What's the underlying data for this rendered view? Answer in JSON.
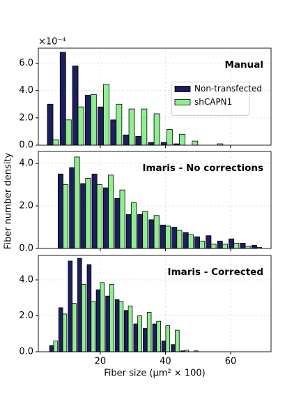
{
  "chart_data": [
    {
      "type": "bar",
      "title": "Manual",
      "y_offset_label": "×10⁻⁴",
      "legend": "center right",
      "grid": true,
      "x": [
        5.5,
        9.4,
        13.2,
        17.1,
        21.0,
        24.9,
        28.8,
        32.6,
        36.5,
        40.4,
        44.3,
        48.2,
        52.0,
        55.9,
        59.8
      ],
      "series": [
        {
          "name": "Non-transfected",
          "color": "#1b1f5e",
          "values": [
            3.0,
            6.8,
            5.8,
            3.65,
            2.8,
            1.85,
            0.75,
            0.65,
            0.2,
            0.2,
            0.1,
            0,
            0,
            0,
            0
          ]
        },
        {
          "name": "shCAPN1",
          "color": "#90ee90",
          "values": [
            0.4,
            1.85,
            2.8,
            3.7,
            4.45,
            3.0,
            2.65,
            2.65,
            2.3,
            1.15,
            0.8,
            0.3,
            0,
            0.1,
            0
          ]
        }
      ],
      "xlim": [
        1,
        72.4
      ],
      "xticks": [
        20,
        40,
        60
      ],
      "ylim": [
        0,
        7.1
      ],
      "yticks": [
        {
          "value": 0,
          "label": "0.0"
        },
        {
          "value": 2,
          "label": "2.0"
        },
        {
          "value": 4,
          "label": "4.0"
        },
        {
          "value": 6,
          "label": "6.0"
        }
      ]
    },
    {
      "type": "bar",
      "title": "Imaris - No corrections",
      "ylabel": "Fiber number density",
      "grid": true,
      "x": [
        8.6,
        12.1,
        15.5,
        19.0,
        22.5,
        26.0,
        29.5,
        33.0,
        36.5,
        40.0,
        43.5,
        47.0,
        50.5,
        54.0,
        57.5,
        61.0,
        64.5,
        68.0
      ],
      "series": [
        {
          "color": "#1b1f5e",
          "values": [
            3.5,
            3.8,
            3.05,
            3.5,
            2.85,
            2.35,
            1.6,
            1.6,
            1.35,
            1.1,
            1.0,
            0.75,
            0.55,
            0.6,
            0.35,
            0.45,
            0.25,
            0.15
          ]
        },
        {
          "color": "#90ee90",
          "values": [
            3.0,
            4.3,
            3.3,
            3.0,
            3.45,
            2.75,
            2.15,
            1.75,
            1.55,
            1.05,
            0.85,
            0.65,
            0.35,
            0.2,
            0.2,
            0.25,
            0.1,
            0.05
          ]
        }
      ],
      "xlim": [
        1,
        72.4
      ],
      "xticks": [
        20,
        40,
        60
      ],
      "ylim": [
        0,
        4.56
      ],
      "yticks": [
        {
          "value": 0,
          "label": "0.0"
        },
        {
          "value": 2,
          "label": "2.0"
        },
        {
          "value": 4,
          "label": "4.0"
        }
      ]
    },
    {
      "type": "bar",
      "title": "Imaris - Corrected",
      "xlabel": "Fiber size (μm² × 100)",
      "grid": true,
      "x": [
        5.7,
        8.5,
        11.4,
        14.3,
        17.2,
        20.0,
        22.9,
        25.8,
        28.6,
        31.5,
        34.4,
        37.3,
        40.1,
        43.0,
        45.9,
        48.8
      ],
      "series": [
        {
          "color": "#1b1f5e",
          "values": [
            0.35,
            2.45,
            5.05,
            5.2,
            4.85,
            3.45,
            3.1,
            2.9,
            2.3,
            1.55,
            1.3,
            1.55,
            0.6,
            0.4,
            0.05,
            0
          ]
        },
        {
          "color": "#90ee90",
          "values": [
            0.6,
            2.1,
            2.7,
            3.75,
            2.8,
            3.85,
            3.75,
            2.8,
            2.55,
            2.0,
            2.2,
            1.7,
            1.45,
            1.2,
            0.1,
            0.05
          ]
        }
      ],
      "xlim": [
        1,
        72.4
      ],
      "xticks": [
        20,
        40,
        60
      ],
      "ylim": [
        0,
        5.36
      ],
      "yticks": [
        {
          "value": 0,
          "label": "0.0"
        },
        {
          "value": 2,
          "label": "2.0"
        },
        {
          "value": 4,
          "label": "4.0"
        }
      ]
    }
  ]
}
